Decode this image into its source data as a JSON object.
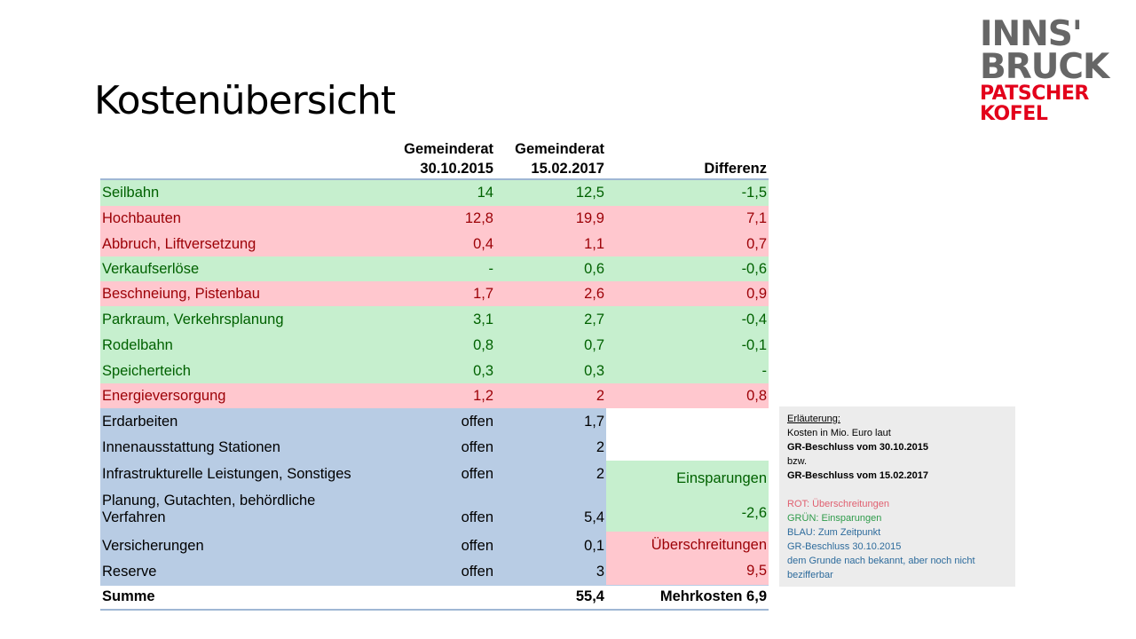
{
  "title": "Kostenübersicht",
  "logo": {
    "line1": "INNS'",
    "line2": "BRUCK",
    "line3": "PATSCHER",
    "line4": "KOFEL"
  },
  "table": {
    "headers": {
      "c1_l1": "Gemeinderat",
      "c1_l2": "30.10.2015",
      "c2_l1": "Gemeinderat",
      "c2_l2": "15.02.2017",
      "c3": "Differenz"
    },
    "rows": [
      {
        "label": "Seilbahn",
        "v1": "14",
        "v2": "12,5",
        "diff": "-1,5",
        "status": "green"
      },
      {
        "label": "Hochbauten",
        "v1": "12,8",
        "v2": "19,9",
        "diff": "7,1",
        "status": "red"
      },
      {
        "label": "Abbruch, Liftversetzung",
        "v1": "0,4",
        "v2": "1,1",
        "diff": "0,7",
        "status": "red"
      },
      {
        "label": "Verkaufserlöse",
        "v1": "-",
        "v2": "0,6",
        "diff": "-0,6",
        "status": "green"
      },
      {
        "label": "Beschneiung, Pistenbau",
        "v1": "1,7",
        "v2": "2,6",
        "diff": "0,9",
        "status": "red"
      },
      {
        "label": "Parkraum, Verkehrsplanung",
        "v1": "3,1",
        "v2": "2,7",
        "diff": "-0,4",
        "status": "green"
      },
      {
        "label": "Rodelbahn",
        "v1": "0,8",
        "v2": "0,7",
        "diff": "-0,1",
        "status": "green"
      },
      {
        "label": "Speicherteich",
        "v1": "0,3",
        "v2": "0,3",
        "diff": "-",
        "status": "green"
      },
      {
        "label": "Energieversorgung",
        "v1": "1,2",
        "v2": "2",
        "diff": "0,8",
        "status": "red"
      },
      {
        "label": "Erdarbeiten",
        "v1": "offen",
        "v2": "1,7",
        "status": "blue"
      },
      {
        "label": "Innenausstattung Stationen",
        "v1": "offen",
        "v2": "2",
        "status": "blue"
      },
      {
        "label": "Infrastrukturelle Leistungen, Sonstiges",
        "v1": "offen",
        "v2": "2",
        "status": "blue"
      },
      {
        "label_l1": "Planung, Gutachten, behördliche",
        "label_l2": "Verfahren",
        "v1": "offen",
        "v2": "5,4",
        "status": "blue"
      },
      {
        "label": "Versicherungen",
        "v1": "offen",
        "v2": "0,1",
        "status": "blue"
      },
      {
        "label": "Reserve",
        "v1": "offen",
        "v2": "3",
        "status": "blue"
      }
    ],
    "savings": {
      "label": "Einsparungen",
      "value": "-2,6"
    },
    "overruns": {
      "label": "Überschreitungen",
      "value": "9,5"
    },
    "sum": {
      "label": "Summe",
      "v2": "55,4",
      "diff": "Mehrkosten 6,9"
    }
  },
  "legend": {
    "heading": "Erläuterung:",
    "l1": "Kosten in Mio. Euro laut",
    "l2": "GR-Beschluss  vom 30.10.2015",
    "l3": "bzw.",
    "l4": "GR-Beschluss  vom 15.02.2017",
    "red": "ROT: Überschreitungen",
    "green": "GRÜN:  Einsparungen",
    "blue1": "BLAU:  Zum Zeitpunkt",
    "blue2": "GR-Beschluss 30.10.2015",
    "blue3": "dem Grunde nach bekannt, aber noch nicht bezifferbar"
  },
  "colors": {
    "red_bg": "#ffc7ce",
    "red_text": "#9c0006",
    "green_bg": "#c6efce",
    "green_text": "#006100",
    "blue_bg": "#b8cce4",
    "logo_red": "#e3001b",
    "logo_gray": "#666666"
  }
}
